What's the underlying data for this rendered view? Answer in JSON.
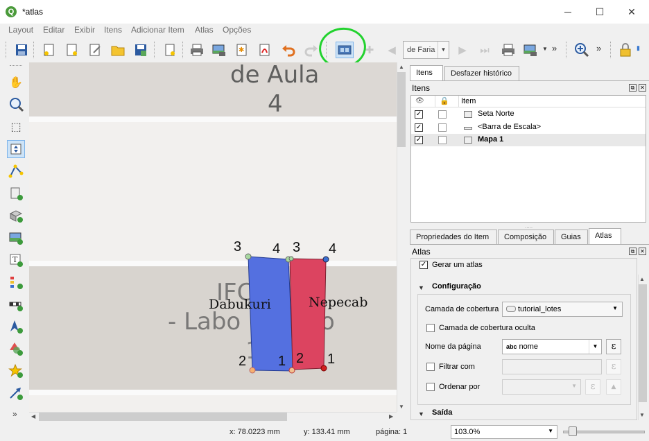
{
  "window": {
    "title": "*atlas",
    "minimize": "─",
    "maximize": "☐",
    "close": "✕"
  },
  "menu": [
    "Layout",
    "Editar",
    "Exibir",
    "Itens",
    "Adicionar Item",
    "Atlas",
    "Opções"
  ],
  "toolbar": {
    "page_combo_value": "de Faria",
    "overflow": "»"
  },
  "canvas": {
    "map_text_top": "de Aula",
    "map_text_num": "4",
    "map_text_mid": "IFC",
    "map_text_lab": "- Labo",
    "map_text_tail": "o",
    "map_text_low": "1",
    "lot_left_label": "Dabukuri",
    "lot_right_label": "Nepecab",
    "vertex_labels": {
      "l3": "3",
      "l4": "4",
      "r3": "3",
      "r4": "4",
      "l2": "2",
      "l1": "1",
      "r2": "2",
      "r1": "1"
    },
    "colors": {
      "lot_left": "#5470e0",
      "lot_right": "#dc4460"
    }
  },
  "right_panel": {
    "top_tabs": [
      "Itens",
      "Desfazer histórico"
    ],
    "items_title": "Itens",
    "items_header_item": "Item",
    "items": [
      {
        "label": "Seta Norte",
        "visible": true,
        "locked": false,
        "icon": "north-arrow-icon"
      },
      {
        "label": "<Barra de Escala>",
        "visible": true,
        "locked": false,
        "icon": "scalebar-icon"
      },
      {
        "label": "Mapa 1",
        "visible": true,
        "locked": false,
        "icon": "map-icon",
        "bold": true
      }
    ],
    "bottom_tabs": [
      "Propriedades do Item",
      "Composição",
      "Guias",
      "Atlas"
    ],
    "atlas_title": "Atlas",
    "generate_atlas": "Gerar um atlas",
    "config_section": "Configuração",
    "coverage_layer_label": "Camada de cobertura",
    "coverage_layer_value": "tutorial_lotes",
    "hidden_coverage_label": "Camada de cobertura oculta",
    "page_name_label": "Nome da página",
    "page_name_value": "nome",
    "page_name_prefix": "abc",
    "filter_label": "Filtrar com",
    "sort_label": "Ordenar por",
    "output_section": "Saída",
    "expression_symbol": "ε"
  },
  "status": {
    "x": "x: 78.0223 mm",
    "y": "y: 133.41 mm",
    "page": "página: 1",
    "zoom": "103.0%"
  }
}
